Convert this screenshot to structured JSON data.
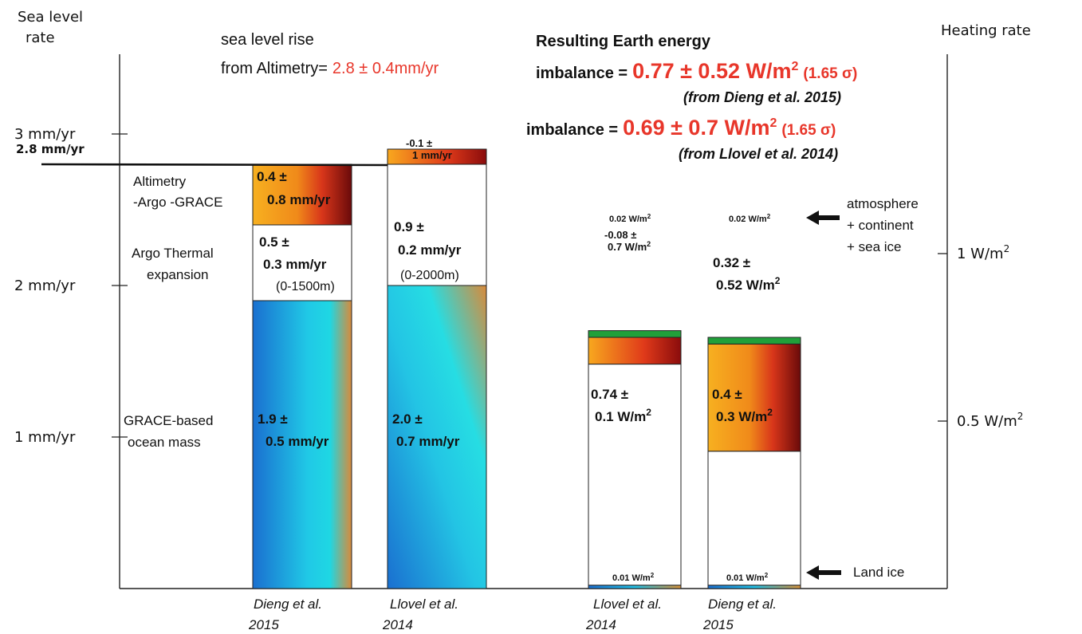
{
  "left_axis": {
    "title_line1": "Sea level",
    "title_line2": "rate",
    "ticks": [
      {
        "label": "3 mm/yr",
        "value": 3.0
      },
      {
        "label": "2 mm/yr",
        "value": 2.0
      },
      {
        "label": "1 mm/yr",
        "value": 1.0
      }
    ],
    "reference_label": "2.8 mm/yr",
    "reference_value": 2.8
  },
  "right_axis": {
    "title": "Heating rate",
    "ticks": [
      {
        "label_base": "1 W/m",
        "sup": "2",
        "value": 1.0
      },
      {
        "label_base": "0.5 W/m",
        "sup": "2",
        "value": 0.5
      }
    ]
  },
  "altimetry_note": {
    "line1": "sea level rise",
    "line2_prefix": "from Altimetry=",
    "line2_value": "2.8 ± 0.4mm/yr"
  },
  "imbalance": {
    "heading": "Resulting Earth energy",
    "row1_prefix": "imbalance =",
    "row1_value": "0.77 ± 0.52 W/m",
    "row1_sup": "2",
    "row1_sigma": "(1.65 σ)",
    "row1_source": "(from Dieng et al. 2015)",
    "row2_prefix": "imbalance =",
    "row2_value": "0.69 ± 0.7 W/m",
    "row2_sup": "2",
    "row2_sigma": "(1.65 σ)",
    "row2_source": "(from Llovel et al. 2014)"
  },
  "row_labels": {
    "altimetry_line1": "Altimetry",
    "altimetry_line2": "-Argo -GRACE",
    "thermal_line1": "Argo Thermal",
    "thermal_line2": "expansion",
    "mass_line1": "GRACE-based",
    "mass_line2": "ocean mass"
  },
  "annotations": {
    "atmo_line1": "atmosphere",
    "atmo_line2": "+ continent",
    "atmo_line3": "+ sea ice",
    "land_ice": "Land ice"
  },
  "columns": [
    {
      "line1": "Dieng et al.",
      "line2": "2015"
    },
    {
      "line1": "Llovel et al.",
      "line2": "2014"
    },
    {
      "line1": "Llovel et al.",
      "line2": "2014"
    },
    {
      "line1": "Dieng et al.",
      "line2": "2015"
    }
  ],
  "chart_data": {
    "type": "bar",
    "stacked": true,
    "categories": [
      "Dieng et al. 2015",
      "Llovel et al. 2014",
      "Llovel et al. 2014",
      "Dieng et al. 2015"
    ],
    "sea_level_budget_mm_per_yr": [
      {
        "study": "Dieng et al. 2015",
        "ocean_mass": 1.9,
        "ocean_mass_uncertainty": 0.5,
        "thermal_expansion": 0.5,
        "thermal_expansion_uncertainty": 0.3,
        "thermal_depth": "(0-1500m)",
        "residual_deep_ocean": 0.4,
        "residual_uncertainty": 0.8
      },
      {
        "study": "Llovel et al. 2014",
        "ocean_mass": 2.0,
        "ocean_mass_uncertainty": 0.7,
        "thermal_expansion": 0.9,
        "thermal_expansion_uncertainty": 0.2,
        "thermal_depth": "(0-2000m)",
        "residual_deep_ocean": -0.1,
        "residual_uncertainty": 1.0
      }
    ],
    "energy_budget_w_per_m2": [
      {
        "study": "Llovel et al. 2014",
        "land_ice": 0.01,
        "ocean_upper": 0.74,
        "ocean_upper_uncertainty": 0.1,
        "ocean_deep": -0.08,
        "ocean_deep_uncertainty": 0.7,
        "atmosphere_continent_sea_ice": 0.02
      },
      {
        "study": "Dieng et al. 2015",
        "land_ice": 0.01,
        "ocean_upper": 0.4,
        "ocean_upper_uncertainty": 0.3,
        "ocean_deep": 0.32,
        "ocean_deep_uncertainty": 0.52,
        "atmosphere_continent_sea_ice": 0.02
      }
    ],
    "ylabel_left": "Sea level rate",
    "ylabel_right": "Heating rate",
    "ylim_left_mm_per_yr": [
      0,
      3.0
    ],
    "ylim_right_w_per_m2": [
      0,
      1.0
    ],
    "reference_line_mm_per_yr": 2.8,
    "segment_labels": {
      "dieng_mass_1": "1.9 ±",
      "dieng_mass_2": "0.5 mm/yr",
      "dieng_thermal_1": "0.5 ±",
      "dieng_thermal_2": "0.3 mm/yr",
      "dieng_thermal_3": "(0-1500m)",
      "dieng_resid_1": "0.4 ±",
      "dieng_resid_2": "0.8 mm/yr",
      "llovel_mass_1": "2.0 ±",
      "llovel_mass_2": "0.7 mm/yr",
      "llovel_thermal_1": "0.9 ±",
      "llovel_thermal_2": "0.2 mm/yr",
      "llovel_thermal_3": "(0-2000m)",
      "llovel_resid_1": "-0.1 ±",
      "llovel_resid_2": "1 mm/yr",
      "e1_top": "0.02 W/m",
      "e1_top_sup": "2",
      "e1_deep_1": "-0.08 ±",
      "e1_deep_2": "0.7 W/m",
      "e1_deep_sup": "2",
      "e1_upper_1": "0.74 ±",
      "e1_upper_2": "0.1 W/m",
      "e1_upper_sup": "2",
      "e1_land": "0.01 W/m",
      "e1_land_sup": "2",
      "e2_top": "0.02 W/m",
      "e2_top_sup": "2",
      "e2_deep_1": "0.32 ±",
      "e2_deep_2": "0.52 W/m",
      "e2_deep_sup": "2",
      "e2_upper_1": "0.4 ±",
      "e2_upper_2": "0.3 W/m",
      "e2_upper_sup": "2",
      "e2_land": "0.01 W/m",
      "e2_land_sup": "2"
    }
  }
}
